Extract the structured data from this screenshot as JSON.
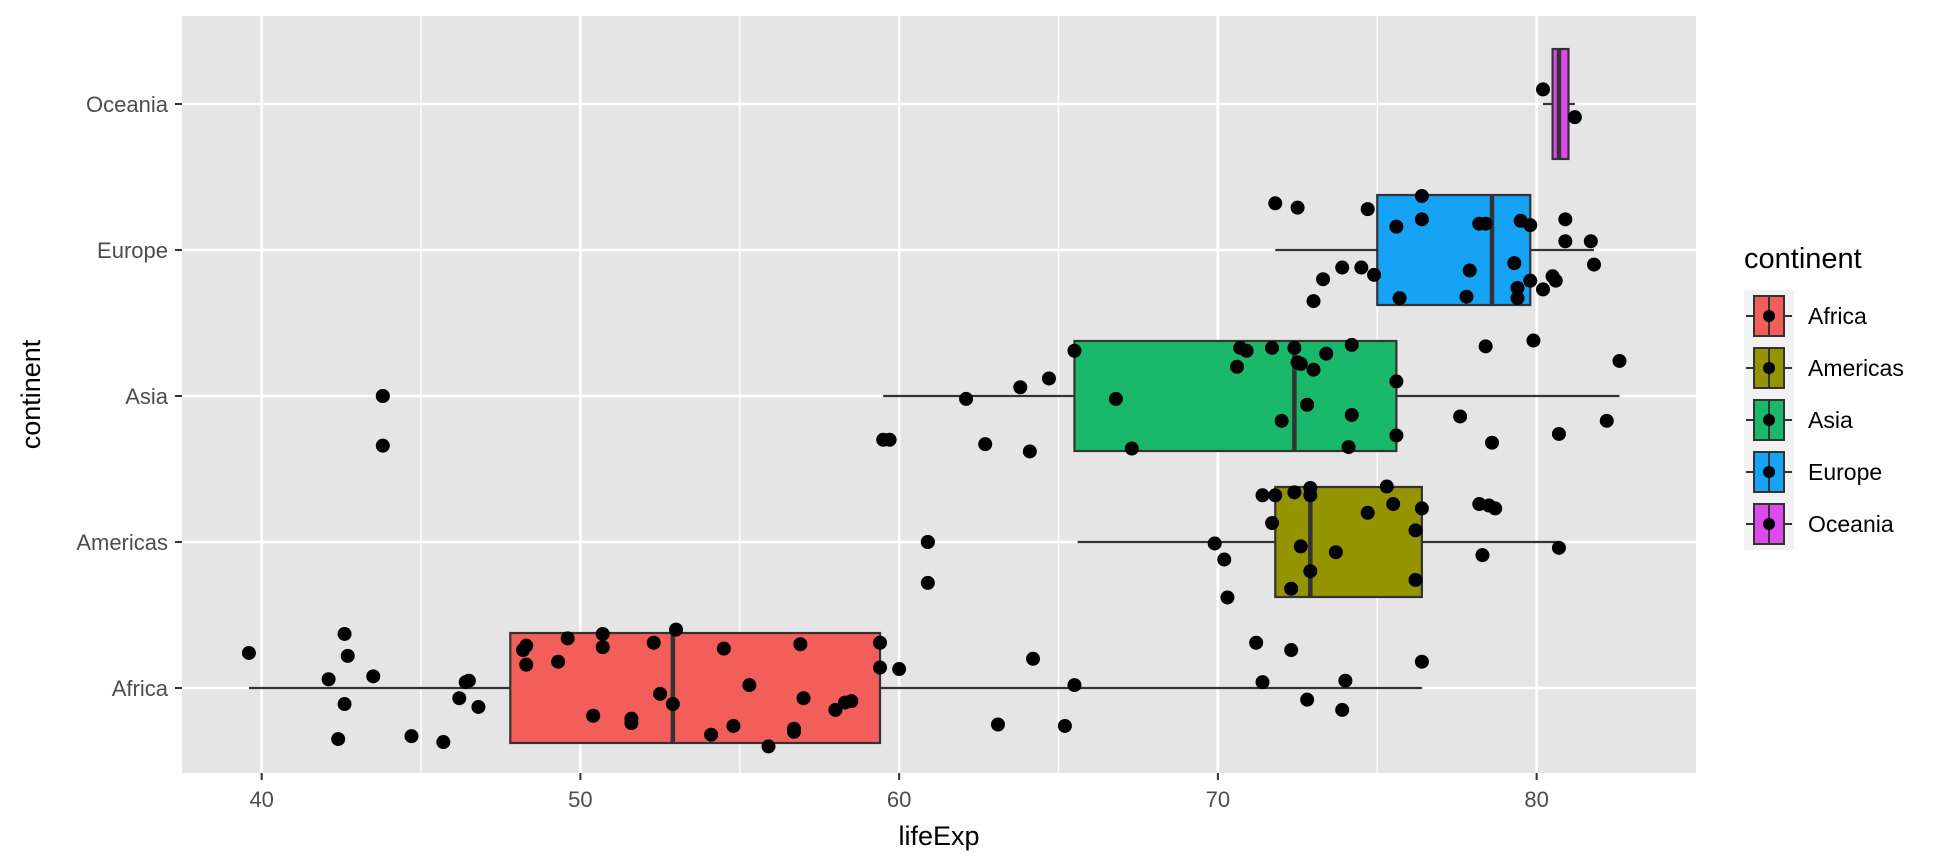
{
  "chart_data": {
    "type": "boxplot",
    "orientation": "horizontal",
    "title": "",
    "xlabel": "lifeExp",
    "ylabel": "continent",
    "xlim": [
      37.5,
      85
    ],
    "x_ticks": [
      40,
      50,
      60,
      70,
      80
    ],
    "categories": [
      "Africa",
      "Americas",
      "Asia",
      "Europe",
      "Oceania"
    ],
    "grid": true,
    "background": "#e5e5e5",
    "legend": {
      "title": "continent",
      "placement": "right"
    },
    "colors": {
      "Africa": "#f25f5b",
      "Americas": "#949400",
      "Asia": "#1ab86a",
      "Europe": "#16a2f5",
      "Oceania": "#dd4bed"
    },
    "boxes": [
      {
        "category": "Africa",
        "whisker_low": 39.6,
        "q1": 47.8,
        "median": 52.9,
        "q3": 59.4,
        "whisker_high": 76.4,
        "outliers": []
      },
      {
        "category": "Americas",
        "whisker_low": 65.6,
        "q1": 71.8,
        "median": 72.9,
        "q3": 76.4,
        "whisker_high": 80.7,
        "outliers": [
          60.9
        ]
      },
      {
        "category": "Asia",
        "whisker_low": 59.5,
        "q1": 65.5,
        "median": 72.4,
        "q3": 75.6,
        "whisker_high": 82.6,
        "outliers": [
          43.8
        ]
      },
      {
        "category": "Europe",
        "whisker_low": 71.8,
        "q1": 75.0,
        "median": 78.6,
        "q3": 79.8,
        "whisker_high": 81.8,
        "outliers": []
      },
      {
        "category": "Oceania",
        "whisker_low": 80.2,
        "q1": 80.5,
        "median": 80.7,
        "q3": 81.0,
        "whisker_high": 81.2,
        "outliers": []
      }
    ],
    "points": [
      {
        "category": "Africa",
        "x": 39.6,
        "jitter": 0.24
      },
      {
        "category": "Africa",
        "x": 42.1,
        "jitter": 0.06
      },
      {
        "category": "Africa",
        "x": 42.6,
        "jitter": 0.37
      },
      {
        "category": "Africa",
        "x": 42.7,
        "jitter": 0.22
      },
      {
        "category": "Africa",
        "x": 43.5,
        "jitter": 0.08
      },
      {
        "category": "Africa",
        "x": 42.6,
        "jitter": -0.11
      },
      {
        "category": "Africa",
        "x": 42.4,
        "jitter": -0.35
      },
      {
        "category": "Africa",
        "x": 44.7,
        "jitter": -0.33
      },
      {
        "category": "Africa",
        "x": 45.7,
        "jitter": -0.37
      },
      {
        "category": "Africa",
        "x": 46.2,
        "jitter": -0.07
      },
      {
        "category": "Africa",
        "x": 46.4,
        "jitter": 0.04
      },
      {
        "category": "Africa",
        "x": 46.5,
        "jitter": 0.05
      },
      {
        "category": "Africa",
        "x": 46.8,
        "jitter": -0.13
      },
      {
        "category": "Africa",
        "x": 48.2,
        "jitter": 0.26
      },
      {
        "category": "Africa",
        "x": 48.3,
        "jitter": 0.29
      },
      {
        "category": "Africa",
        "x": 48.3,
        "jitter": 0.16
      },
      {
        "category": "Africa",
        "x": 49.3,
        "jitter": 0.18
      },
      {
        "category": "Africa",
        "x": 49.6,
        "jitter": 0.34
      },
      {
        "category": "Africa",
        "x": 50.4,
        "jitter": -0.19
      },
      {
        "category": "Africa",
        "x": 50.7,
        "jitter": 0.28
      },
      {
        "category": "Africa",
        "x": 50.7,
        "jitter": 0.37
      },
      {
        "category": "Africa",
        "x": 51.6,
        "jitter": -0.21
      },
      {
        "category": "Africa",
        "x": 51.6,
        "jitter": -0.24
      },
      {
        "category": "Africa",
        "x": 52.3,
        "jitter": 0.31
      },
      {
        "category": "Africa",
        "x": 52.5,
        "jitter": -0.04
      },
      {
        "category": "Africa",
        "x": 52.9,
        "jitter": -0.11
      },
      {
        "category": "Africa",
        "x": 53.0,
        "jitter": 0.4
      },
      {
        "category": "Africa",
        "x": 54.1,
        "jitter": -0.32
      },
      {
        "category": "Africa",
        "x": 54.5,
        "jitter": 0.27
      },
      {
        "category": "Africa",
        "x": 54.8,
        "jitter": -0.26
      },
      {
        "category": "Africa",
        "x": 55.3,
        "jitter": 0.02
      },
      {
        "category": "Africa",
        "x": 55.9,
        "jitter": -0.4
      },
      {
        "category": "Africa",
        "x": 56.7,
        "jitter": -0.28
      },
      {
        "category": "Africa",
        "x": 56.7,
        "jitter": -0.3
      },
      {
        "category": "Africa",
        "x": 56.9,
        "jitter": 0.3
      },
      {
        "category": "Africa",
        "x": 57.0,
        "jitter": -0.07
      },
      {
        "category": "Africa",
        "x": 58.0,
        "jitter": -0.15
      },
      {
        "category": "Africa",
        "x": 58.3,
        "jitter": -0.1
      },
      {
        "category": "Africa",
        "x": 58.5,
        "jitter": -0.09
      },
      {
        "category": "Africa",
        "x": 59.4,
        "jitter": 0.31
      },
      {
        "category": "Africa",
        "x": 59.4,
        "jitter": 0.14
      },
      {
        "category": "Africa",
        "x": 60.0,
        "jitter": 0.13
      },
      {
        "category": "Africa",
        "x": 63.1,
        "jitter": -0.25
      },
      {
        "category": "Africa",
        "x": 64.2,
        "jitter": 0.2
      },
      {
        "category": "Africa",
        "x": 65.2,
        "jitter": -0.26
      },
      {
        "category": "Africa",
        "x": 65.5,
        "jitter": 0.02
      },
      {
        "category": "Africa",
        "x": 71.2,
        "jitter": 0.31
      },
      {
        "category": "Africa",
        "x": 71.4,
        "jitter": 0.04
      },
      {
        "category": "Africa",
        "x": 72.3,
        "jitter": 0.26
      },
      {
        "category": "Africa",
        "x": 72.8,
        "jitter": -0.08
      },
      {
        "category": "Africa",
        "x": 73.9,
        "jitter": -0.15
      },
      {
        "category": "Africa",
        "x": 74.0,
        "jitter": 0.05
      },
      {
        "category": "Africa",
        "x": 76.4,
        "jitter": 0.18
      },
      {
        "category": "Americas",
        "x": 60.9,
        "jitter": 0.0
      },
      {
        "category": "Americas",
        "x": 60.9,
        "jitter": -0.28
      },
      {
        "category": "Americas",
        "x": 69.9,
        "jitter": -0.01
      },
      {
        "category": "Americas",
        "x": 70.2,
        "jitter": -0.12
      },
      {
        "category": "Americas",
        "x": 70.3,
        "jitter": -0.38
      },
      {
        "category": "Americas",
        "x": 71.4,
        "jitter": 0.32
      },
      {
        "category": "Americas",
        "x": 71.7,
        "jitter": 0.13
      },
      {
        "category": "Americas",
        "x": 71.8,
        "jitter": 0.32
      },
      {
        "category": "Americas",
        "x": 72.4,
        "jitter": 0.34
      },
      {
        "category": "Americas",
        "x": 72.3,
        "jitter": -0.32
      },
      {
        "category": "Americas",
        "x": 72.6,
        "jitter": -0.03
      },
      {
        "category": "Americas",
        "x": 72.9,
        "jitter": 0.32
      },
      {
        "category": "Americas",
        "x": 72.9,
        "jitter": 0.37
      },
      {
        "category": "Americas",
        "x": 72.9,
        "jitter": -0.2
      },
      {
        "category": "Americas",
        "x": 73.7,
        "jitter": -0.07
      },
      {
        "category": "Americas",
        "x": 74.7,
        "jitter": 0.2
      },
      {
        "category": "Americas",
        "x": 75.3,
        "jitter": 0.38
      },
      {
        "category": "Americas",
        "x": 75.5,
        "jitter": 0.26
      },
      {
        "category": "Americas",
        "x": 76.2,
        "jitter": 0.08
      },
      {
        "category": "Americas",
        "x": 76.4,
        "jitter": 0.23
      },
      {
        "category": "Americas",
        "x": 76.2,
        "jitter": -0.26
      },
      {
        "category": "Americas",
        "x": 78.2,
        "jitter": 0.26
      },
      {
        "category": "Americas",
        "x": 78.3,
        "jitter": -0.09
      },
      {
        "category": "Americas",
        "x": 78.5,
        "jitter": 0.25
      },
      {
        "category": "Americas",
        "x": 78.7,
        "jitter": 0.23
      },
      {
        "category": "Americas",
        "x": 80.7,
        "jitter": -0.04
      },
      {
        "category": "Asia",
        "x": 43.8,
        "jitter": 0.0
      },
      {
        "category": "Asia",
        "x": 43.8,
        "jitter": -0.34
      },
      {
        "category": "Asia",
        "x": 59.5,
        "jitter": -0.3
      },
      {
        "category": "Asia",
        "x": 59.7,
        "jitter": -0.3
      },
      {
        "category": "Asia",
        "x": 62.1,
        "jitter": -0.02
      },
      {
        "category": "Asia",
        "x": 62.7,
        "jitter": -0.33
      },
      {
        "category": "Asia",
        "x": 63.8,
        "jitter": 0.06
      },
      {
        "category": "Asia",
        "x": 64.1,
        "jitter": -0.38
      },
      {
        "category": "Asia",
        "x": 64.7,
        "jitter": 0.12
      },
      {
        "category": "Asia",
        "x": 65.5,
        "jitter": 0.31
      },
      {
        "category": "Asia",
        "x": 66.8,
        "jitter": -0.02
      },
      {
        "category": "Asia",
        "x": 67.3,
        "jitter": -0.36
      },
      {
        "category": "Asia",
        "x": 70.6,
        "jitter": 0.2
      },
      {
        "category": "Asia",
        "x": 70.7,
        "jitter": 0.33
      },
      {
        "category": "Asia",
        "x": 70.9,
        "jitter": 0.31
      },
      {
        "category": "Asia",
        "x": 71.7,
        "jitter": 0.33
      },
      {
        "category": "Asia",
        "x": 72.0,
        "jitter": -0.17
      },
      {
        "category": "Asia",
        "x": 72.4,
        "jitter": 0.33
      },
      {
        "category": "Asia",
        "x": 72.5,
        "jitter": 0.23
      },
      {
        "category": "Asia",
        "x": 72.6,
        "jitter": 0.22
      },
      {
        "category": "Asia",
        "x": 72.8,
        "jitter": -0.06
      },
      {
        "category": "Asia",
        "x": 73.0,
        "jitter": 0.18
      },
      {
        "category": "Asia",
        "x": 73.4,
        "jitter": 0.29
      },
      {
        "category": "Asia",
        "x": 74.1,
        "jitter": -0.35
      },
      {
        "category": "Asia",
        "x": 74.2,
        "jitter": -0.13
      },
      {
        "category": "Asia",
        "x": 74.2,
        "jitter": 0.35
      },
      {
        "category": "Asia",
        "x": 75.6,
        "jitter": 0.1
      },
      {
        "category": "Asia",
        "x": 75.6,
        "jitter": -0.27
      },
      {
        "category": "Asia",
        "x": 77.6,
        "jitter": -0.14
      },
      {
        "category": "Asia",
        "x": 78.4,
        "jitter": 0.34
      },
      {
        "category": "Asia",
        "x": 78.6,
        "jitter": -0.32
      },
      {
        "category": "Asia",
        "x": 79.9,
        "jitter": 0.38
      },
      {
        "category": "Asia",
        "x": 80.7,
        "jitter": -0.26
      },
      {
        "category": "Asia",
        "x": 82.2,
        "jitter": -0.17
      },
      {
        "category": "Asia",
        "x": 82.6,
        "jitter": 0.24
      },
      {
        "category": "Europe",
        "x": 71.8,
        "jitter": 0.32
      },
      {
        "category": "Europe",
        "x": 72.5,
        "jitter": 0.29
      },
      {
        "category": "Europe",
        "x": 73.0,
        "jitter": -0.35
      },
      {
        "category": "Europe",
        "x": 73.3,
        "jitter": -0.2
      },
      {
        "category": "Europe",
        "x": 73.9,
        "jitter": -0.12
      },
      {
        "category": "Europe",
        "x": 74.5,
        "jitter": -0.12
      },
      {
        "category": "Europe",
        "x": 74.7,
        "jitter": 0.28
      },
      {
        "category": "Europe",
        "x": 74.9,
        "jitter": -0.17
      },
      {
        "category": "Europe",
        "x": 75.6,
        "jitter": 0.16
      },
      {
        "category": "Europe",
        "x": 75.7,
        "jitter": -0.33
      },
      {
        "category": "Europe",
        "x": 76.4,
        "jitter": 0.37
      },
      {
        "category": "Europe",
        "x": 76.4,
        "jitter": 0.21
      },
      {
        "category": "Europe",
        "x": 77.8,
        "jitter": -0.32
      },
      {
        "category": "Europe",
        "x": 77.9,
        "jitter": -0.14
      },
      {
        "category": "Europe",
        "x": 78.2,
        "jitter": 0.18
      },
      {
        "category": "Europe",
        "x": 78.4,
        "jitter": 0.18
      },
      {
        "category": "Europe",
        "x": 79.3,
        "jitter": -0.09
      },
      {
        "category": "Europe",
        "x": 79.4,
        "jitter": -0.26
      },
      {
        "category": "Europe",
        "x": 79.5,
        "jitter": 0.2
      },
      {
        "category": "Europe",
        "x": 79.4,
        "jitter": -0.33
      },
      {
        "category": "Europe",
        "x": 79.8,
        "jitter": 0.17
      },
      {
        "category": "Europe",
        "x": 79.8,
        "jitter": -0.21
      },
      {
        "category": "Europe",
        "x": 80.2,
        "jitter": -0.27
      },
      {
        "category": "Europe",
        "x": 80.5,
        "jitter": -0.18
      },
      {
        "category": "Europe",
        "x": 80.6,
        "jitter": -0.21
      },
      {
        "category": "Europe",
        "x": 80.9,
        "jitter": 0.06
      },
      {
        "category": "Europe",
        "x": 80.9,
        "jitter": 0.21
      },
      {
        "category": "Europe",
        "x": 81.7,
        "jitter": 0.06
      },
      {
        "category": "Europe",
        "x": 81.8,
        "jitter": -0.1
      },
      {
        "category": "Oceania",
        "x": 80.2,
        "jitter": 0.1
      },
      {
        "category": "Oceania",
        "x": 81.2,
        "jitter": -0.09
      }
    ]
  }
}
